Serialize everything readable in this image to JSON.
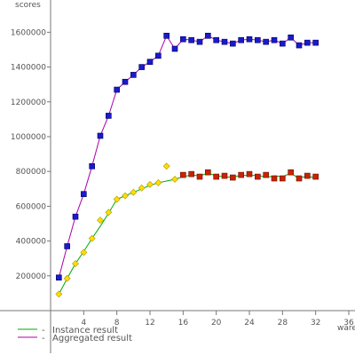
{
  "chart_data": {
    "type": "line",
    "ylabel": "scores",
    "xlabel": "warehouses",
    "xlim": [
      0,
      36
    ],
    "ylim": [
      0,
      1760000
    ],
    "xticks": [
      4,
      8,
      12,
      16,
      20,
      24,
      28,
      32,
      36
    ],
    "yticks": [
      200000,
      400000,
      600000,
      800000,
      1000000,
      1200000,
      1400000,
      1600000
    ],
    "grid": false,
    "legend_position": "bottom-left",
    "series": [
      {
        "name": "Instance result",
        "color": "#00aa00",
        "x": [
          1,
          2,
          3,
          4,
          5,
          6,
          7,
          8,
          9,
          10,
          11,
          12,
          13,
          14,
          15,
          16,
          17,
          18,
          19,
          20,
          21,
          22,
          23,
          24,
          25,
          26,
          27,
          28,
          29,
          30,
          31,
          32
        ],
        "y": [
          95000,
          185000,
          270000,
          340000,
          415000,
          485000,
          560000,
          640000,
          660000,
          680000,
          700000,
          720000,
          735000,
          745000,
          755000,
          770000,
          780000,
          775000,
          790000,
          775000,
          770000,
          765000,
          780000,
          775000,
          780000,
          765000,
          775000,
          770000,
          790000,
          760000,
          775000,
          760000
        ]
      },
      {
        "name": "Aggregated result",
        "color": "#aa00aa",
        "x": [
          1,
          2,
          3,
          4,
          5,
          6,
          7,
          8,
          9,
          10,
          11,
          12,
          13,
          14,
          15,
          16,
          17,
          18,
          19,
          20,
          21,
          22,
          23,
          24,
          25,
          26,
          27,
          28,
          29,
          30,
          31,
          32
        ],
        "y": [
          190000,
          370000,
          540000,
          670000,
          830000,
          1005000,
          1120000,
          1270000,
          1315000,
          1355000,
          1400000,
          1430000,
          1465000,
          1580000,
          1505000,
          1560000,
          1555000,
          1545000,
          1580000,
          1555000,
          1545000,
          1535000,
          1555000,
          1560000,
          1555000,
          1545000,
          1555000,
          1535000,
          1570000,
          1525000,
          1540000,
          1540000
        ]
      },
      {
        "name": "",
        "color": "#ddcc00",
        "x": [
          1,
          2,
          3,
          4,
          5,
          6,
          7,
          8,
          9,
          10,
          11,
          12,
          13,
          14,
          15
        ],
        "y": [
          95000,
          185000,
          270000,
          335000,
          415000,
          520000,
          565000,
          640000,
          660000,
          680000,
          705000,
          725000,
          735000,
          830000,
          755000
        ]
      },
      {
        "name": "",
        "color": "#cc2200",
        "x": [
          16,
          17,
          18,
          19,
          20,
          21,
          22,
          23,
          24,
          25,
          26,
          27,
          28,
          29,
          30,
          31,
          32
        ],
        "y": [
          780000,
          785000,
          770000,
          795000,
          770000,
          775000,
          765000,
          780000,
          785000,
          770000,
          780000,
          760000,
          760000,
          795000,
          760000,
          775000,
          770000
        ]
      }
    ]
  }
}
